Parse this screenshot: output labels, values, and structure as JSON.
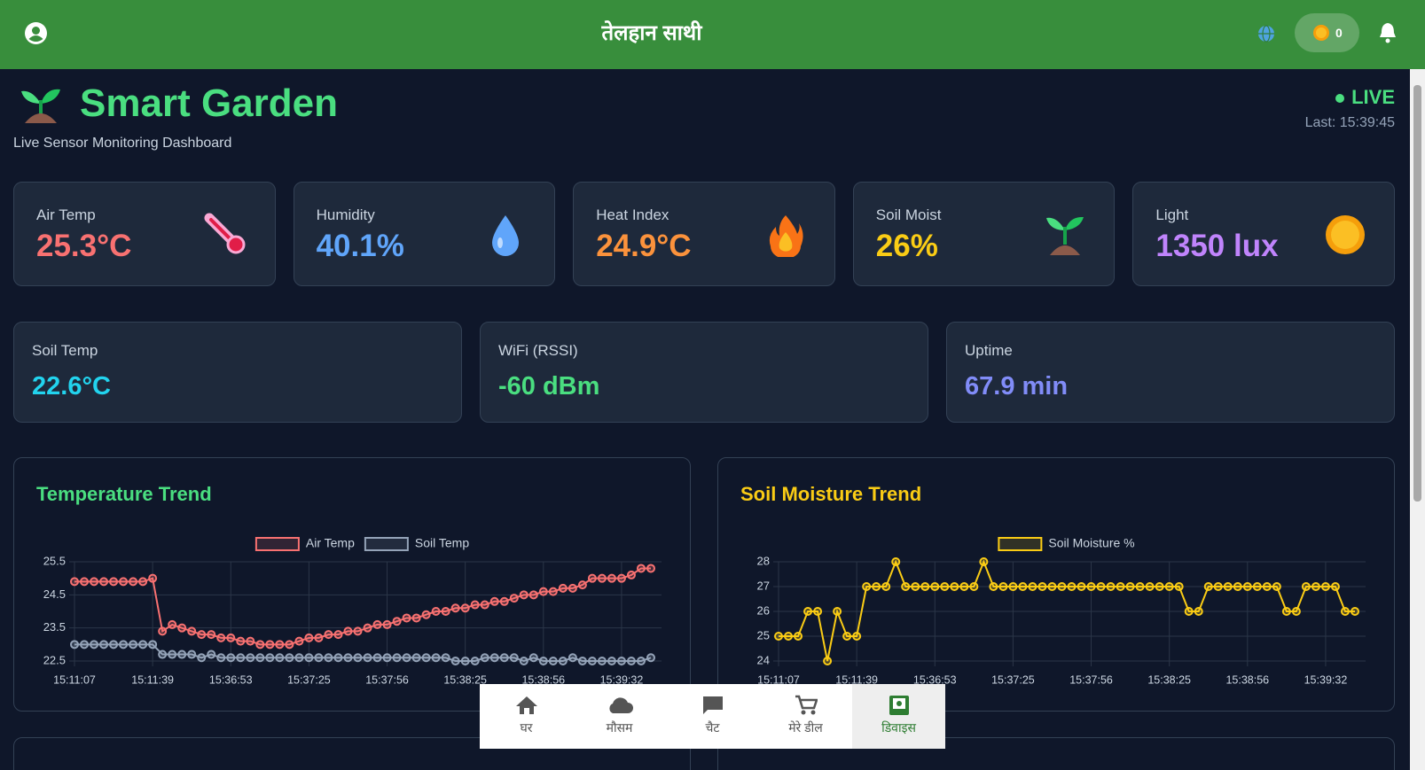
{
  "header": {
    "title": "तेलहान साथी",
    "coins": 0
  },
  "page": {
    "title": "Smart Garden",
    "subtitle": "Live Sensor Monitoring Dashboard",
    "status": "LIVE",
    "last_update": "Last: 15:39:45"
  },
  "sensor_cards": [
    {
      "label": "Air Temp",
      "value": "25.3°C"
    },
    {
      "label": "Humidity",
      "value": "40.1%"
    },
    {
      "label": "Heat Index",
      "value": "24.9°C"
    },
    {
      "label": "Soil Moist",
      "value": "26%"
    },
    {
      "label": "Light",
      "value": "1350 lux"
    }
  ],
  "status_cards": [
    {
      "label": "Soil Temp",
      "value": "22.6°C"
    },
    {
      "label": "WiFi (RSSI)",
      "value": "-60 dBm"
    },
    {
      "label": "Uptime",
      "value": "67.9 min"
    }
  ],
  "chart_data": [
    {
      "type": "line",
      "title": "Temperature Trend",
      "categories": [
        "15:11:07",
        null,
        null,
        null,
        null,
        null,
        null,
        null,
        "15:11:39",
        null,
        null,
        null,
        null,
        null,
        null,
        null,
        "15:36:53",
        null,
        null,
        null,
        null,
        null,
        null,
        null,
        "15:37:25",
        null,
        null,
        null,
        null,
        null,
        null,
        null,
        "15:37:56",
        null,
        null,
        null,
        null,
        null,
        null,
        null,
        "15:38:25",
        null,
        null,
        null,
        null,
        null,
        null,
        null,
        "15:38:56",
        null,
        null,
        null,
        null,
        null,
        null,
        null,
        "15:39:32",
        null,
        null,
        null
      ],
      "series": [
        {
          "name": "Air Temp",
          "color": "#f87171",
          "values": [
            24.9,
            24.9,
            24.9,
            24.9,
            24.9,
            24.9,
            24.9,
            24.9,
            25.0,
            23.4,
            23.6,
            23.5,
            23.4,
            23.3,
            23.3,
            23.2,
            23.2,
            23.1,
            23.1,
            23.0,
            23.0,
            23.0,
            23.0,
            23.1,
            23.2,
            23.2,
            23.3,
            23.3,
            23.4,
            23.4,
            23.5,
            23.6,
            23.6,
            23.7,
            23.8,
            23.8,
            23.9,
            24.0,
            24.0,
            24.1,
            24.1,
            24.2,
            24.2,
            24.3,
            24.3,
            24.4,
            24.5,
            24.5,
            24.6,
            24.6,
            24.7,
            24.7,
            24.8,
            25.0,
            25.0,
            25.0,
            25.0,
            25.1,
            25.3,
            25.3
          ]
        },
        {
          "name": "Soil Temp",
          "color": "#94a3b8",
          "values": [
            23.0,
            23.0,
            23.0,
            23.0,
            23.0,
            23.0,
            23.0,
            23.0,
            23.0,
            22.7,
            22.7,
            22.7,
            22.7,
            22.6,
            22.7,
            22.6,
            22.6,
            22.6,
            22.6,
            22.6,
            22.6,
            22.6,
            22.6,
            22.6,
            22.6,
            22.6,
            22.6,
            22.6,
            22.6,
            22.6,
            22.6,
            22.6,
            22.6,
            22.6,
            22.6,
            22.6,
            22.6,
            22.6,
            22.6,
            22.5,
            22.5,
            22.5,
            22.6,
            22.6,
            22.6,
            22.6,
            22.5,
            22.6,
            22.5,
            22.5,
            22.5,
            22.6,
            22.5,
            22.5,
            22.5,
            22.5,
            22.5,
            22.5,
            22.5,
            22.6
          ]
        }
      ],
      "ylim": [
        22.5,
        25.5
      ],
      "yticks": [
        22.5,
        23.5,
        24.5,
        25.5
      ],
      "grid": true,
      "legend": "top"
    },
    {
      "type": "line",
      "title": "Soil Moisture Trend",
      "categories": [
        "15:11:07",
        null,
        null,
        null,
        null,
        null,
        null,
        null,
        "15:11:39",
        null,
        null,
        null,
        null,
        null,
        null,
        null,
        "15:36:53",
        null,
        null,
        null,
        null,
        null,
        null,
        null,
        "15:37:25",
        null,
        null,
        null,
        null,
        null,
        null,
        null,
        "15:37:56",
        null,
        null,
        null,
        null,
        null,
        null,
        null,
        "15:38:25",
        null,
        null,
        null,
        null,
        null,
        null,
        null,
        "15:38:56",
        null,
        null,
        null,
        null,
        null,
        null,
        null,
        "15:39:32",
        null,
        null,
        null
      ],
      "series": [
        {
          "name": "Soil Moisture %",
          "color": "#facc15",
          "values": [
            25,
            25,
            25,
            26,
            26,
            24,
            26,
            25,
            25,
            27,
            27,
            27,
            28,
            27,
            27,
            27,
            27,
            27,
            27,
            27,
            27,
            28,
            27,
            27,
            27,
            27,
            27,
            27,
            27,
            27,
            27,
            27,
            27,
            27,
            27,
            27,
            27,
            27,
            27,
            27,
            27,
            27,
            26,
            26,
            27,
            27,
            27,
            27,
            27,
            27,
            27,
            27,
            26,
            26,
            27,
            27,
            27,
            27,
            26,
            26
          ]
        }
      ],
      "ylim": [
        24,
        28
      ],
      "yticks": [
        24,
        25,
        26,
        27,
        28
      ],
      "grid": true,
      "legend": "top"
    }
  ],
  "nav": [
    "घर",
    "मौसम",
    "चैट",
    "मेरे डील",
    "डिवाइस"
  ]
}
